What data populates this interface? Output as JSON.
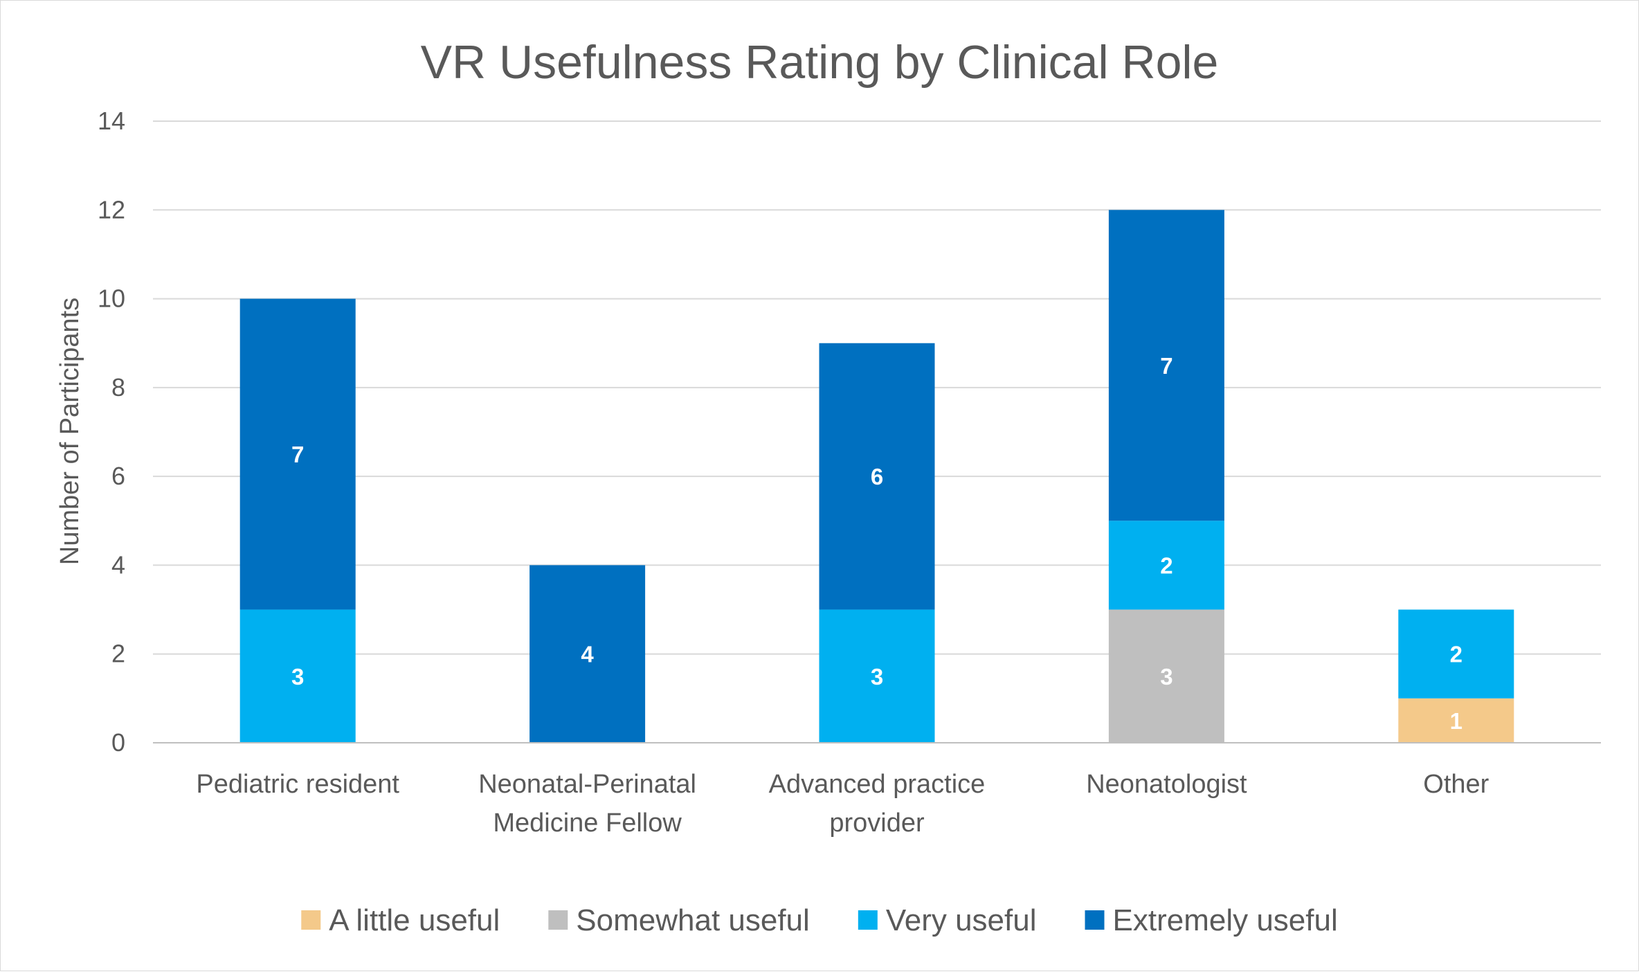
{
  "chart_data": {
    "type": "bar",
    "stacked": true,
    "title": "VR Usefulness Rating by Clinical Role",
    "xlabel": "",
    "ylabel": "Number of Participants",
    "ylim": [
      0,
      14
    ],
    "yticks": [
      0,
      2,
      4,
      6,
      8,
      10,
      12,
      14
    ],
    "grid": true,
    "legend_position": "bottom",
    "categories": [
      [
        "Pediatric resident"
      ],
      [
        "Neonatal-Perinatal",
        "Medicine Fellow"
      ],
      [
        "Advanced practice",
        "provider"
      ],
      [
        "Neonatologist"
      ],
      [
        "Other"
      ]
    ],
    "series": [
      {
        "name": "A little useful",
        "color": "#F4C98A",
        "values": [
          0,
          0,
          0,
          0,
          1
        ]
      },
      {
        "name": "Somewhat useful",
        "color": "#BFBFBF",
        "values": [
          0,
          0,
          0,
          3,
          0
        ]
      },
      {
        "name": "Very useful",
        "color": "#00B0F0",
        "values": [
          3,
          0,
          3,
          2,
          2
        ]
      },
      {
        "name": "Extremely useful",
        "color": "#0070C0",
        "values": [
          7,
          4,
          6,
          7,
          0
        ]
      }
    ],
    "gridline_color": "#d9d9d9",
    "axis_color": "#bfbfbf"
  }
}
